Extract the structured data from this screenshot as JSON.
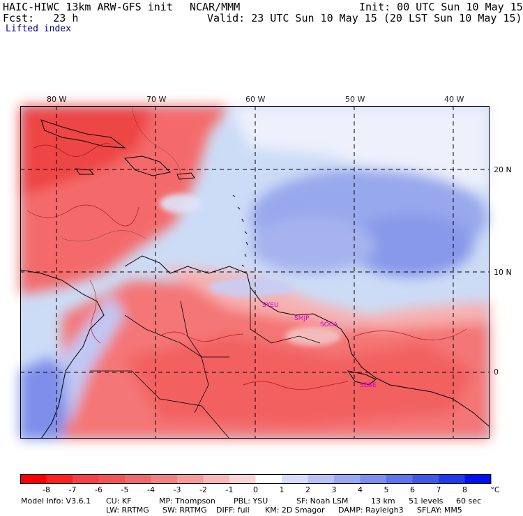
{
  "header": {
    "model": "HAIC-HIWC 13km ARW-GFS init",
    "center": "NCAR/MMM",
    "init": "Init: 00 UTC Sun 10 May 15",
    "fcst": "Fcst:   23 h",
    "valid": "Valid: 23 UTC Sun 10 May 15 (20 LST Sun 10 May 15)",
    "field": "Lifted index"
  },
  "map": {
    "lon_labels": [
      "80 W",
      "70 W",
      "60 W",
      "50 W",
      "40 W"
    ],
    "lat_labels": [
      "20 N",
      "10 N",
      "0"
    ],
    "stations": [
      "SYEU",
      "SMJP",
      "SOCA",
      "SBBE"
    ],
    "ocean_color": "#ccdcf6",
    "warm_color": "#f46a6a",
    "cool_color": "#7f8ff0"
  },
  "colorbar": {
    "ticks": [
      "-8",
      "-7",
      "-6",
      "-5",
      "-4",
      "-3",
      "-2",
      "-1",
      "0",
      "1",
      "2",
      "3",
      "4",
      "5",
      "6",
      "7",
      "8"
    ],
    "unit": "°C",
    "colors": [
      "#ff0000",
      "#ff2020",
      "#f84040",
      "#f25454",
      "#ec6a6a",
      "#f08282",
      "#f49c9c",
      "#f8b8b8",
      "#fcd4d4",
      "#ffffff",
      "#d6dcfa",
      "#b8c2f6",
      "#9aa8f2",
      "#7c8eee",
      "#5e74ea",
      "#4058e6",
      "#203cea",
      "#0010f0"
    ]
  },
  "footer": {
    "line1": [
      "Model Info: V3.6.1",
      "CU: KF",
      "MP: Thompson",
      "PBL: YSU",
      "SF: Noah LSM",
      "13 km",
      "51 levels",
      "60 sec"
    ],
    "line2": [
      "LW: RRTMG",
      "SW: RRTMG",
      "DIFF: full",
      "KM: 2D Smagor",
      "DAMP: Rayleigh3",
      "SFLAY: MM5"
    ]
  }
}
